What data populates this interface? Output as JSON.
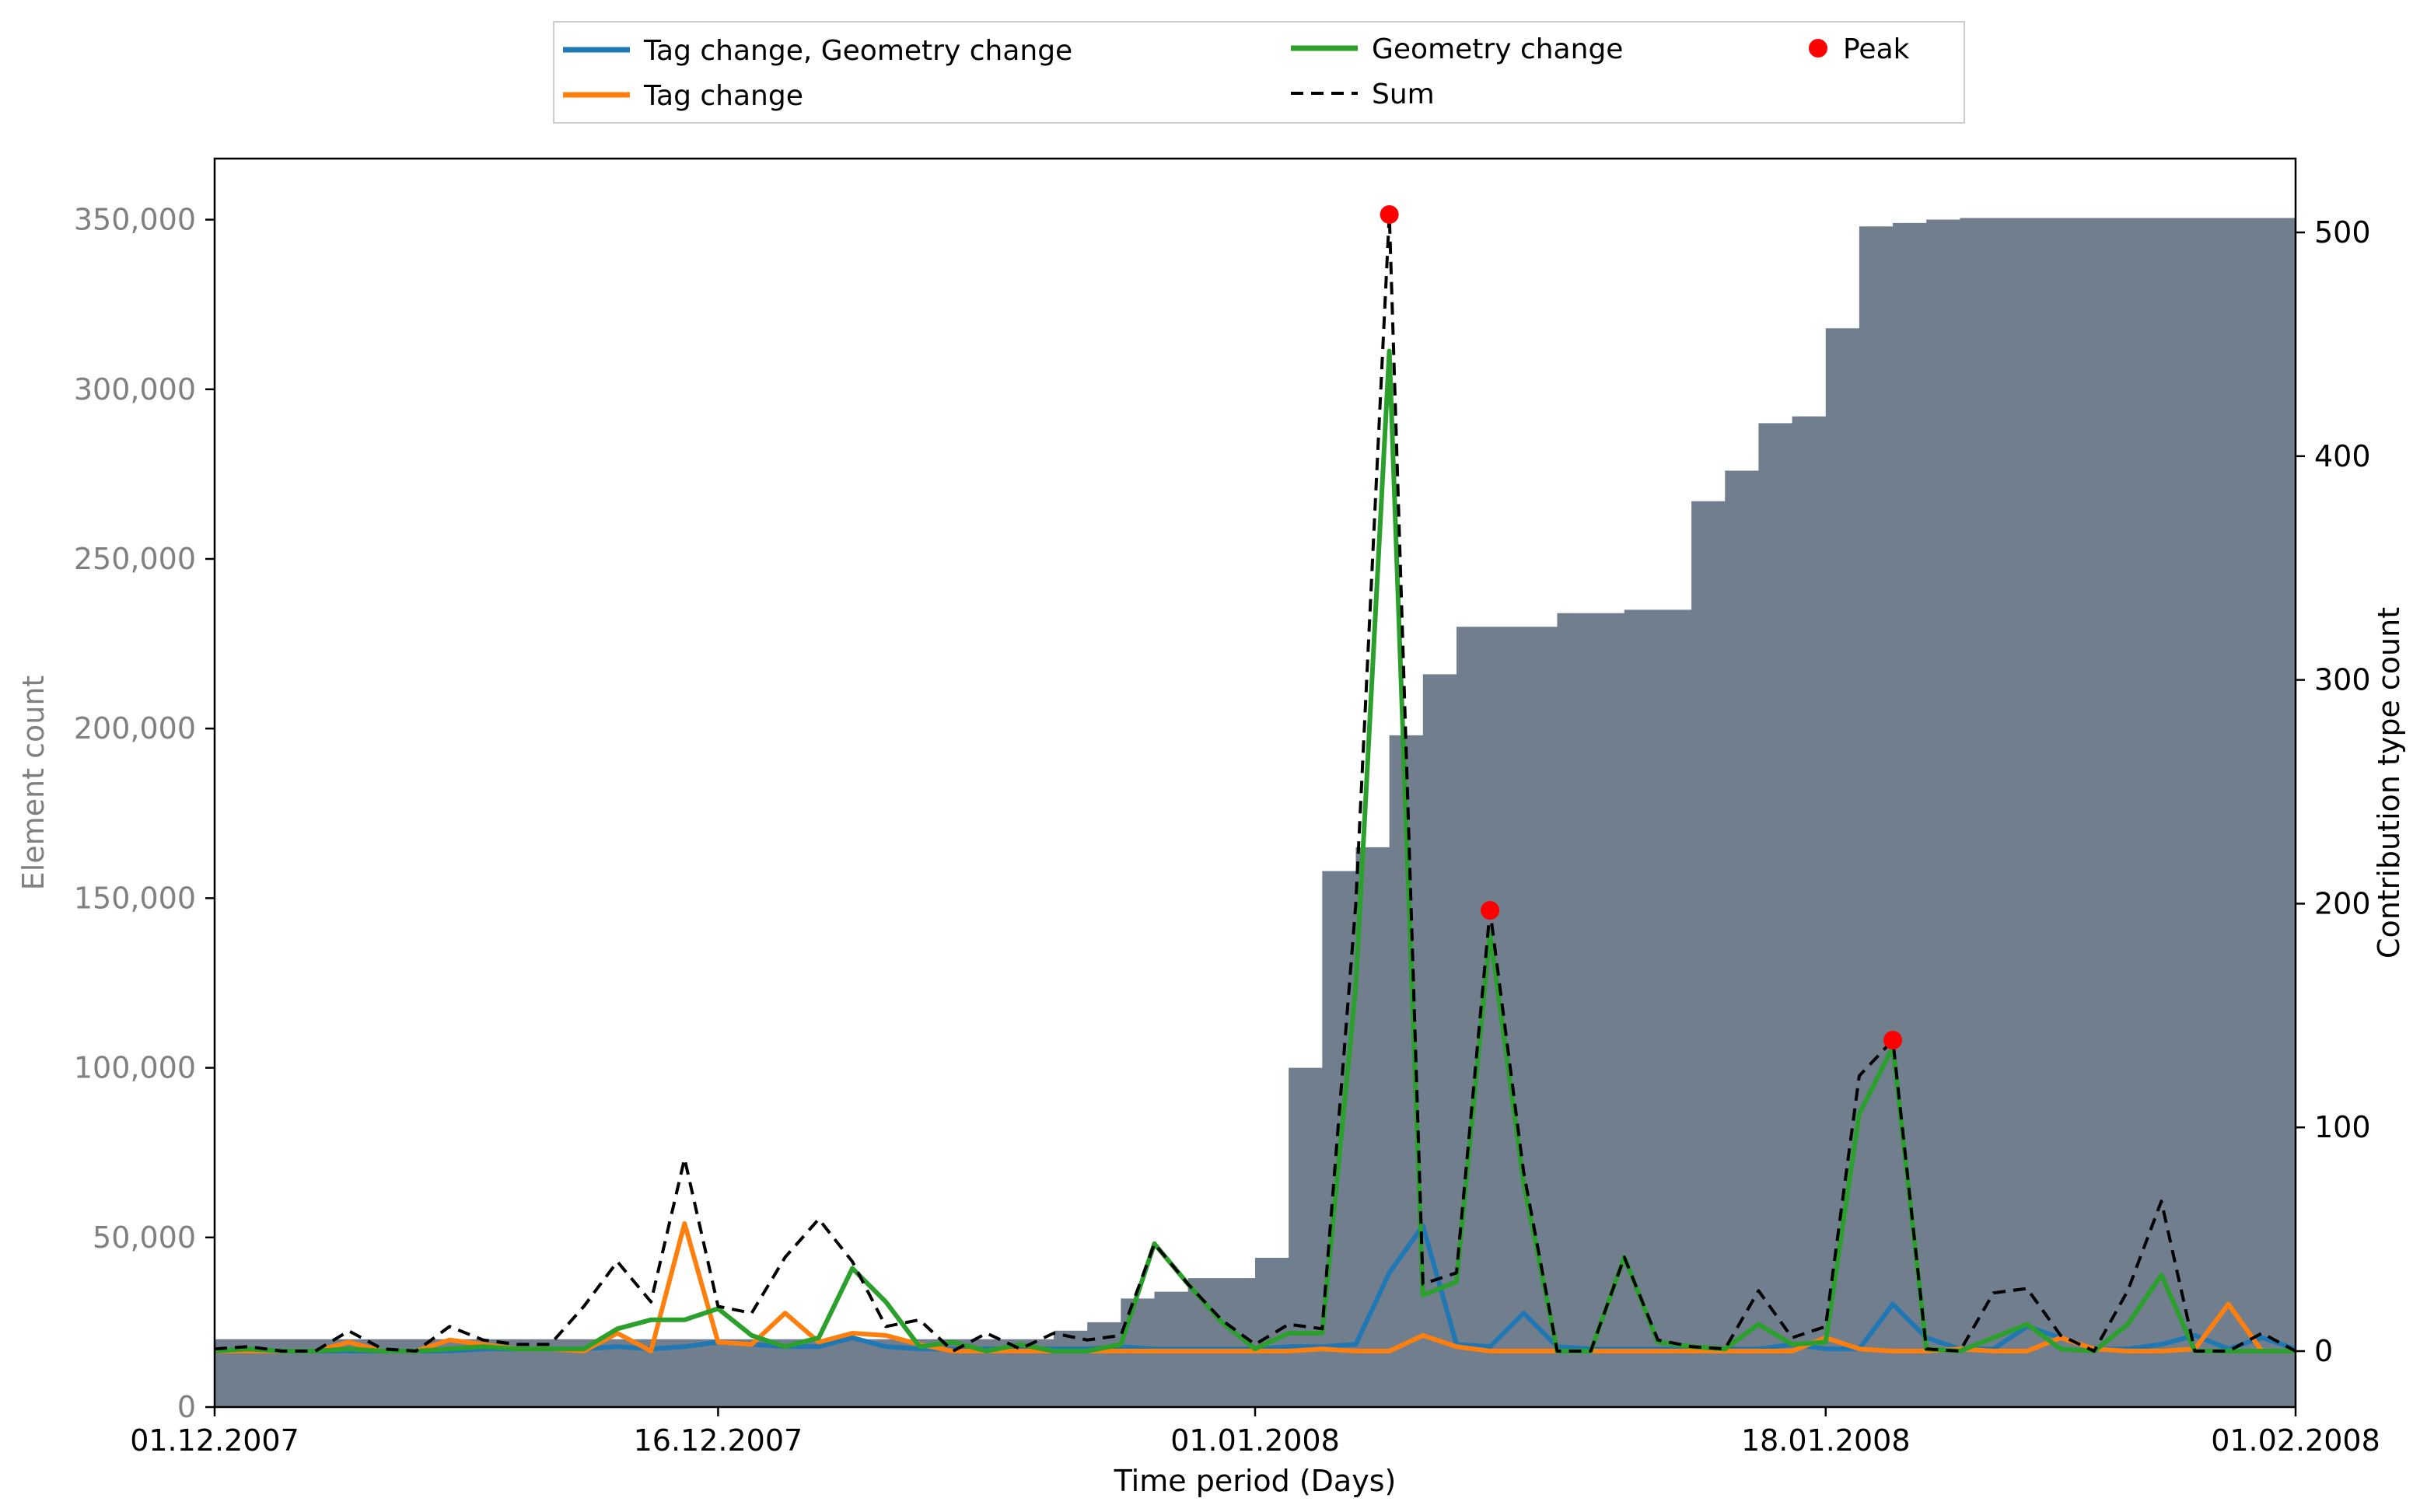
{
  "colors": {
    "area": "#707e8e",
    "tag_geom": "#1f77b4",
    "tag": "#ff7f0e",
    "geom": "#2ca02c",
    "sum": "#000000",
    "peak": "#ff0000",
    "left_axis_text": "#808080"
  },
  "chart_data": {
    "type": "line",
    "xlabel": "Time period (Days)",
    "ylabel_left": "Element count",
    "ylabel_right": "Contribution type count",
    "x_start": "01.12.2007",
    "x_end": "01.02.2008",
    "x_ticks": [
      {
        "label": "01.12.2007",
        "day": 0
      },
      {
        "label": "16.12.2007",
        "day": 15
      },
      {
        "label": "01.01.2008",
        "day": 31
      },
      {
        "label": "18.01.2008",
        "day": 48
      },
      {
        "label": "01.02.2008",
        "day": 62
      }
    ],
    "y_left": {
      "ylim": [
        0,
        368000
      ],
      "ticks": [
        0,
        50000,
        100000,
        150000,
        200000,
        250000,
        300000,
        350000
      ],
      "tick_labels": [
        "0",
        "50,000",
        "100,000",
        "150,000",
        "200,000",
        "250,000",
        "300,000",
        "350,000"
      ]
    },
    "y_right": {
      "ylim": [
        -25,
        533
      ],
      "ticks": [
        0,
        100,
        200,
        300,
        400,
        500
      ],
      "tick_labels": [
        "0",
        "100",
        "200",
        "300",
        "400",
        "500"
      ]
    },
    "area_element_count": [
      [
        0,
        20000
      ],
      [
        1,
        20000
      ],
      [
        2,
        20000
      ],
      [
        3,
        20000
      ],
      [
        4,
        20000
      ],
      [
        5,
        20000
      ],
      [
        6,
        20000
      ],
      [
        7,
        20000
      ],
      [
        8,
        20000
      ],
      [
        9,
        20000
      ],
      [
        10,
        20000
      ],
      [
        11,
        20000
      ],
      [
        12,
        20000
      ],
      [
        13,
        20000
      ],
      [
        14,
        20000
      ],
      [
        15,
        20000
      ],
      [
        16,
        20000
      ],
      [
        17,
        20000
      ],
      [
        18,
        20000
      ],
      [
        19,
        20000
      ],
      [
        20,
        20000
      ],
      [
        21,
        20000
      ],
      [
        22,
        20000
      ],
      [
        23,
        20000
      ],
      [
        24,
        20000
      ],
      [
        25,
        22500
      ],
      [
        26,
        25000
      ],
      [
        27,
        32000
      ],
      [
        28,
        34000
      ],
      [
        29,
        38000
      ],
      [
        30,
        38000
      ],
      [
        31,
        44000
      ],
      [
        32,
        100000
      ],
      [
        33,
        158000
      ],
      [
        34,
        165000
      ],
      [
        35,
        198000
      ],
      [
        36,
        216000
      ],
      [
        37,
        230000
      ],
      [
        38,
        230000
      ],
      [
        39,
        230000
      ],
      [
        40,
        234000
      ],
      [
        41,
        234000
      ],
      [
        42,
        235000
      ],
      [
        43,
        235000
      ],
      [
        44,
        267000
      ],
      [
        45,
        276000
      ],
      [
        46,
        290000
      ],
      [
        47,
        292000
      ],
      [
        48,
        318000
      ],
      [
        49,
        348000
      ],
      [
        50,
        349000
      ],
      [
        51,
        350000
      ],
      [
        52,
        350500
      ],
      [
        53,
        350500
      ],
      [
        54,
        350500
      ],
      [
        55,
        350500
      ],
      [
        56,
        350500
      ],
      [
        57,
        350500
      ],
      [
        58,
        350500
      ],
      [
        59,
        350500
      ],
      [
        60,
        350500
      ],
      [
        61,
        350500
      ],
      [
        62,
        350500
      ]
    ],
    "series": [
      {
        "name": "Tag change, Geometry change",
        "key": "tag_geom",
        "values": [
          [
            0,
            0
          ],
          [
            1,
            1
          ],
          [
            2,
            0
          ],
          [
            3,
            0
          ],
          [
            4,
            0
          ],
          [
            5,
            0
          ],
          [
            6,
            0
          ],
          [
            7,
            0
          ],
          [
            8,
            1
          ],
          [
            9,
            1
          ],
          [
            10,
            1
          ],
          [
            11,
            1
          ],
          [
            12,
            2
          ],
          [
            13,
            1
          ],
          [
            14,
            2
          ],
          [
            15,
            4
          ],
          [
            16,
            3
          ],
          [
            17,
            2
          ],
          [
            18,
            2
          ],
          [
            19,
            6
          ],
          [
            20,
            2
          ],
          [
            21,
            1
          ],
          [
            22,
            1
          ],
          [
            23,
            1
          ],
          [
            24,
            1
          ],
          [
            25,
            1
          ],
          [
            26,
            1
          ],
          [
            27,
            2
          ],
          [
            28,
            1
          ],
          [
            29,
            1
          ],
          [
            30,
            1
          ],
          [
            31,
            1
          ],
          [
            32,
            2
          ],
          [
            33,
            2
          ],
          [
            34,
            3
          ],
          [
            35,
            35
          ],
          [
            36,
            56
          ],
          [
            37,
            3
          ],
          [
            38,
            2
          ],
          [
            39,
            17
          ],
          [
            40,
            2
          ],
          [
            41,
            1
          ],
          [
            42,
            1
          ],
          [
            43,
            1
          ],
          [
            44,
            1
          ],
          [
            45,
            1
          ],
          [
            46,
            1
          ],
          [
            47,
            3
          ],
          [
            48,
            1
          ],
          [
            49,
            1
          ],
          [
            50,
            21
          ],
          [
            51,
            6
          ],
          [
            52,
            1
          ],
          [
            53,
            1
          ],
          [
            54,
            11
          ],
          [
            55,
            6
          ],
          [
            56,
            1
          ],
          [
            57,
            1
          ],
          [
            58,
            3
          ],
          [
            59,
            7
          ],
          [
            60,
            1
          ],
          [
            61,
            6
          ],
          [
            62,
            1
          ]
        ]
      },
      {
        "name": "Tag change",
        "key": "tag",
        "values": [
          [
            0,
            0
          ],
          [
            1,
            0
          ],
          [
            2,
            0
          ],
          [
            3,
            0
          ],
          [
            4,
            4
          ],
          [
            5,
            0
          ],
          [
            6,
            0
          ],
          [
            7,
            5
          ],
          [
            8,
            3
          ],
          [
            9,
            1
          ],
          [
            10,
            1
          ],
          [
            11,
            0
          ],
          [
            12,
            8
          ],
          [
            13,
            0
          ],
          [
            14,
            57
          ],
          [
            15,
            4
          ],
          [
            16,
            3
          ],
          [
            17,
            17
          ],
          [
            18,
            4
          ],
          [
            19,
            8
          ],
          [
            20,
            7
          ],
          [
            21,
            3
          ],
          [
            22,
            0
          ],
          [
            23,
            0
          ],
          [
            24,
            0
          ],
          [
            25,
            0
          ],
          [
            26,
            0
          ],
          [
            27,
            0
          ],
          [
            28,
            0
          ],
          [
            29,
            0
          ],
          [
            30,
            0
          ],
          [
            31,
            0
          ],
          [
            32,
            0
          ],
          [
            33,
            1
          ],
          [
            34,
            0
          ],
          [
            35,
            0
          ],
          [
            36,
            7
          ],
          [
            37,
            2
          ],
          [
            38,
            0
          ],
          [
            39,
            0
          ],
          [
            40,
            0
          ],
          [
            41,
            0
          ],
          [
            42,
            0
          ],
          [
            43,
            0
          ],
          [
            44,
            0
          ],
          [
            45,
            0
          ],
          [
            46,
            0
          ],
          [
            47,
            0
          ],
          [
            48,
            6
          ],
          [
            49,
            1
          ],
          [
            50,
            0
          ],
          [
            51,
            0
          ],
          [
            52,
            1
          ],
          [
            53,
            0
          ],
          [
            54,
            0
          ],
          [
            55,
            6
          ],
          [
            56,
            1
          ],
          [
            57,
            0
          ],
          [
            58,
            0
          ],
          [
            59,
            1
          ],
          [
            60,
            21
          ],
          [
            61,
            0
          ],
          [
            62,
            0
          ]
        ]
      },
      {
        "name": "Geometry change",
        "key": "geom",
        "values": [
          [
            0,
            0
          ],
          [
            1,
            1
          ],
          [
            2,
            0
          ],
          [
            3,
            0
          ],
          [
            4,
            1
          ],
          [
            5,
            0
          ],
          [
            6,
            0
          ],
          [
            7,
            1
          ],
          [
            8,
            2
          ],
          [
            9,
            1
          ],
          [
            10,
            1
          ],
          [
            11,
            1
          ],
          [
            12,
            10
          ],
          [
            13,
            14
          ],
          [
            14,
            14
          ],
          [
            15,
            19
          ],
          [
            16,
            7
          ],
          [
            17,
            2
          ],
          [
            18,
            6
          ],
          [
            19,
            37
          ],
          [
            20,
            22
          ],
          [
            21,
            2
          ],
          [
            22,
            4
          ],
          [
            23,
            0
          ],
          [
            24,
            3
          ],
          [
            25,
            0
          ],
          [
            26,
            0
          ],
          [
            27,
            3
          ],
          [
            28,
            48
          ],
          [
            29,
            30
          ],
          [
            30,
            13
          ],
          [
            31,
            1
          ],
          [
            32,
            8
          ],
          [
            33,
            8
          ],
          [
            34,
            163
          ],
          [
            35,
            447
          ],
          [
            36,
            25
          ],
          [
            37,
            31
          ],
          [
            38,
            187
          ],
          [
            39,
            75
          ],
          [
            40,
            0
          ],
          [
            41,
            0
          ],
          [
            42,
            42
          ],
          [
            43,
            4
          ],
          [
            44,
            2
          ],
          [
            45,
            1
          ],
          [
            46,
            12
          ],
          [
            47,
            3
          ],
          [
            48,
            4
          ],
          [
            49,
            106
          ],
          [
            50,
            136
          ],
          [
            51,
            1
          ],
          [
            52,
            0
          ],
          [
            53,
            6
          ],
          [
            54,
            12
          ],
          [
            55,
            1
          ],
          [
            56,
            0
          ],
          [
            57,
            12
          ],
          [
            58,
            34
          ],
          [
            59,
            0
          ],
          [
            60,
            0
          ],
          [
            61,
            0
          ],
          [
            62,
            0
          ]
        ]
      },
      {
        "name": "Sum",
        "key": "sum",
        "values": [
          [
            0,
            1
          ],
          [
            1,
            2
          ],
          [
            2,
            0
          ],
          [
            3,
            0
          ],
          [
            4,
            9
          ],
          [
            5,
            1
          ],
          [
            6,
            0
          ],
          [
            7,
            11
          ],
          [
            8,
            5
          ],
          [
            9,
            3
          ],
          [
            10,
            3
          ],
          [
            11,
            20
          ],
          [
            12,
            40
          ],
          [
            13,
            22
          ],
          [
            14,
            86
          ],
          [
            15,
            20
          ],
          [
            16,
            17
          ],
          [
            17,
            42
          ],
          [
            18,
            59
          ],
          [
            19,
            40
          ],
          [
            20,
            11
          ],
          [
            21,
            14
          ],
          [
            22,
            0
          ],
          [
            23,
            8
          ],
          [
            24,
            1
          ],
          [
            25,
            8
          ],
          [
            26,
            5
          ],
          [
            27,
            7
          ],
          [
            28,
            48
          ],
          [
            29,
            30
          ],
          [
            30,
            14
          ],
          [
            31,
            3
          ],
          [
            32,
            12
          ],
          [
            33,
            10
          ],
          [
            34,
            200
          ],
          [
            35,
            508
          ],
          [
            36,
            30
          ],
          [
            37,
            35
          ],
          [
            38,
            197
          ],
          [
            39,
            80
          ],
          [
            40,
            0
          ],
          [
            41,
            0
          ],
          [
            42,
            42
          ],
          [
            43,
            5
          ],
          [
            44,
            2
          ],
          [
            45,
            1
          ],
          [
            46,
            27
          ],
          [
            47,
            6
          ],
          [
            48,
            11
          ],
          [
            49,
            123
          ],
          [
            50,
            139
          ],
          [
            51,
            1
          ],
          [
            52,
            0
          ],
          [
            53,
            26
          ],
          [
            54,
            28
          ],
          [
            55,
            7
          ],
          [
            56,
            0
          ],
          [
            57,
            27
          ],
          [
            58,
            67
          ],
          [
            59,
            0
          ],
          [
            60,
            0
          ],
          [
            61,
            8
          ],
          [
            62,
            0
          ]
        ]
      }
    ],
    "peaks": {
      "name": "Peak",
      "points": [
        [
          35,
          508
        ],
        [
          38,
          197
        ],
        [
          50,
          139
        ]
      ]
    },
    "legend": {
      "placement": "top-center",
      "entries": [
        {
          "label": "Tag change, Geometry change",
          "key": "tag_geom",
          "kind": "line"
        },
        {
          "label": "Tag change",
          "key": "tag",
          "kind": "line"
        },
        {
          "label": "Geometry change",
          "key": "geom",
          "kind": "line"
        },
        {
          "label": "Sum",
          "key": "sum",
          "kind": "dashed"
        },
        {
          "label": "Peak",
          "key": "peak",
          "kind": "marker"
        }
      ]
    }
  }
}
